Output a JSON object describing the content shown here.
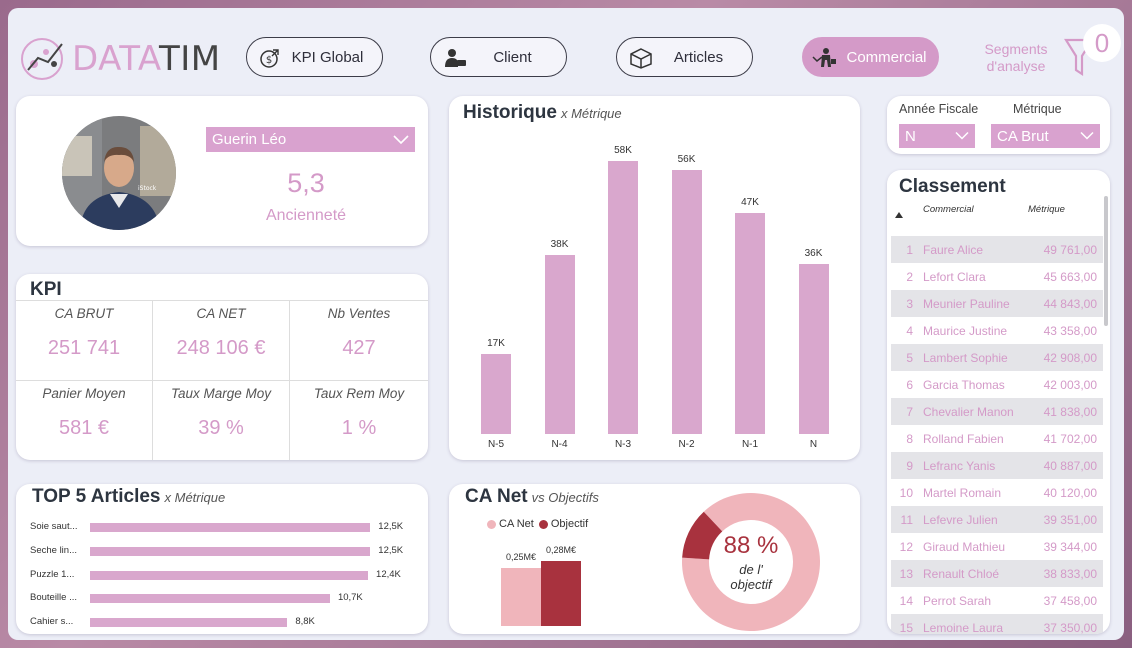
{
  "header": {
    "logo_text_a": "DATA",
    "logo_text_b": "TIM",
    "nav": [
      {
        "label": "KPI Global",
        "icon": "money-icon",
        "active": false
      },
      {
        "label": "Client",
        "icon": "client-icon",
        "active": false
      },
      {
        "label": "Articles",
        "icon": "box-icon",
        "active": false
      },
      {
        "label": "Commercial",
        "icon": "salesperson-icon",
        "active": true
      }
    ],
    "segments_label": "Segments d'analyse",
    "segments_count": "0"
  },
  "profile": {
    "name": "Guerin Léo",
    "seniority_value": "5,3",
    "seniority_label": "Ancienneté",
    "photo_watermark": "iStock"
  },
  "kpi": {
    "title": "KPI",
    "cells": [
      {
        "label": "CA BRUT",
        "value": "251 741"
      },
      {
        "label": "CA NET",
        "value": "248 106 €"
      },
      {
        "label": "Nb Ventes",
        "value": "427"
      },
      {
        "label": "Panier Moyen",
        "value": "581 €"
      },
      {
        "label": "Taux Marge Moy",
        "value": "39 %"
      },
      {
        "label": "Taux Rem Moy",
        "value": "1 %"
      }
    ]
  },
  "historique": {
    "title": "Historique",
    "subtitle": "x Métrique"
  },
  "top5": {
    "title": "TOP 5 Articles",
    "subtitle": "x Métrique"
  },
  "ca_net": {
    "title": "CA Net",
    "subtitle": "vs Objectifs",
    "legend": [
      "CA Net",
      "Objectif"
    ],
    "bar_labels": [
      "0,25M€",
      "0,28M€"
    ],
    "donut_pct": "88 %",
    "donut_text1": "de l'",
    "donut_text2": "objectif"
  },
  "filters": {
    "year_label": "Année Fiscale",
    "year_value": "N",
    "metric_label": "Métrique",
    "metric_value": "CA Brut"
  },
  "classement": {
    "title": "Classement",
    "col_commercial": "Commercial",
    "col_metrique": "Métrique",
    "rows": [
      {
        "rank": "1",
        "name": "Faure Alice",
        "value": "49 761,00"
      },
      {
        "rank": "2",
        "name": "Lefort Clara",
        "value": "45 663,00"
      },
      {
        "rank": "3",
        "name": "Meunier Pauline",
        "value": "44 843,00"
      },
      {
        "rank": "4",
        "name": "Maurice Justine",
        "value": "43 358,00"
      },
      {
        "rank": "5",
        "name": "Lambert Sophie",
        "value": "42 908,00"
      },
      {
        "rank": "6",
        "name": "Garcia Thomas",
        "value": "42 003,00"
      },
      {
        "rank": "7",
        "name": "Chevalier Manon",
        "value": "41 838,00"
      },
      {
        "rank": "8",
        "name": "Rolland Fabien",
        "value": "41 702,00"
      },
      {
        "rank": "9",
        "name": "Lefranc Yanis",
        "value": "40 887,00"
      },
      {
        "rank": "10",
        "name": "Martel Romain",
        "value": "40 120,00"
      },
      {
        "rank": "11",
        "name": "Lefevre Julien",
        "value": "39 351,00"
      },
      {
        "rank": "12",
        "name": "Giraud Mathieu",
        "value": "39 344,00"
      },
      {
        "rank": "13",
        "name": "Renault Chloé",
        "value": "38 833,00"
      },
      {
        "rank": "14",
        "name": "Perrot Sarah",
        "value": "37 458,00"
      },
      {
        "rank": "15",
        "name": "Lemoine Laura",
        "value": "37 350,00"
      }
    ]
  },
  "colors": {
    "accent": "#d49ac8",
    "bar": "#d9a7cd",
    "ca_net": "#f0b5bb",
    "objectif": "#a8323e"
  },
  "chart_data": [
    {
      "type": "bar",
      "title": "Historique",
      "categories": [
        "N-5",
        "N-4",
        "N-3",
        "N-2",
        "N-1",
        "N"
      ],
      "values": [
        17,
        38,
        58,
        56,
        47,
        36
      ],
      "data_labels": [
        "17K",
        "38K",
        "58K",
        "56K",
        "47K",
        "36K"
      ],
      "ylim": [
        0,
        62
      ]
    },
    {
      "type": "bar",
      "orientation": "horizontal",
      "title": "TOP 5 Articles",
      "categories": [
        "Soie saut...",
        "Seche lin...",
        "Puzzle 1...",
        "Bouteille ...",
        "Cahier s..."
      ],
      "values": [
        12.5,
        12.5,
        12.4,
        10.7,
        8.8
      ],
      "data_labels": [
        "12,5K",
        "12,5K",
        "12,4K",
        "10,7K",
        "8,8K"
      ],
      "xlim": [
        0,
        13.2
      ]
    },
    {
      "type": "bar",
      "title": "CA Net",
      "categories": [
        "CA Net",
        "Objectif"
      ],
      "values": [
        0.25,
        0.28
      ],
      "ylim": [
        0,
        0.3
      ]
    },
    {
      "type": "pie",
      "title": "CA Net vs Objectifs",
      "labels": [
        "CA Net",
        "Objectif"
      ],
      "values": [
        88,
        12
      ]
    }
  ]
}
